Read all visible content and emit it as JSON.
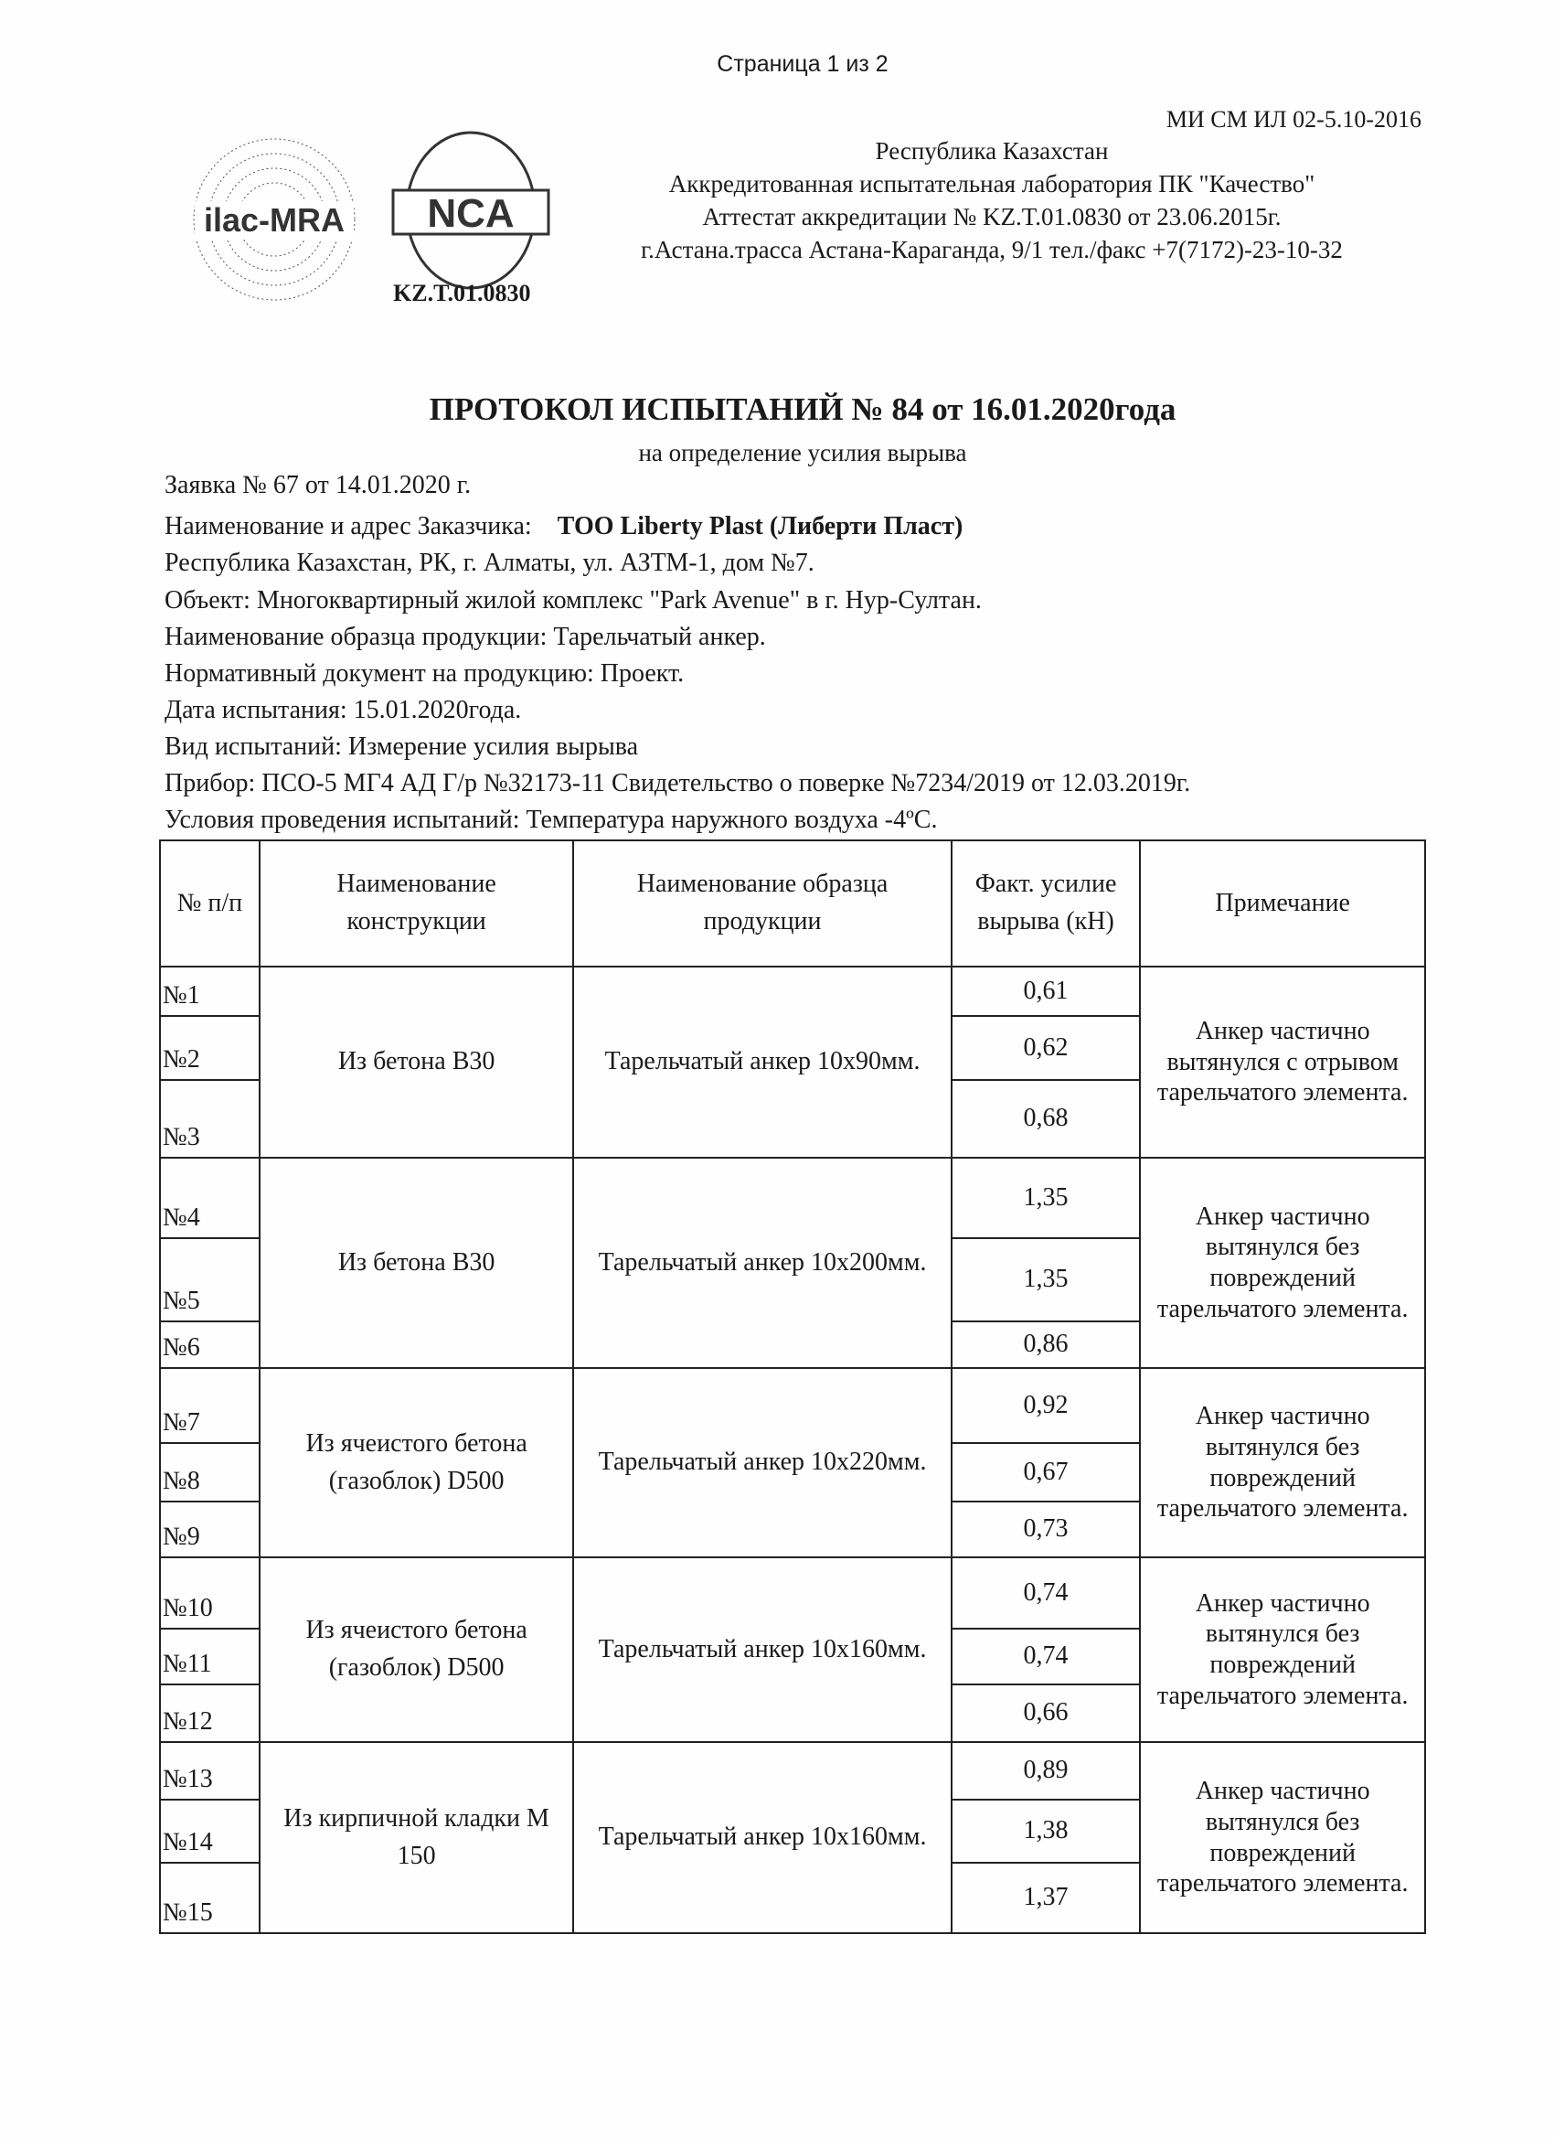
{
  "page_indicator": "Страница  1 из 2",
  "doc_code": "МИ СМ  ИЛ 02-5.10-2016",
  "logos": {
    "ilac": "ilac-MRA",
    "nca": "NCA",
    "nca_code": "KZ.T.01.0830"
  },
  "header": [
    "Республика Казахстан",
    "Аккредитованная испытательная лаборатория    ПК \"Качество\"",
    "Аттестат аккредитации № KZ.T.01.0830 от 23.06.2015г.",
    "г.Астана.трасса Астана-Караганда, 9/1 тел./факс +7(7172)-23-10-32"
  ],
  "title": "ПРОТОКОЛ ИСПЫТАНИЙ № 84 от 16.01.2020года",
  "subtitle": "на определение  усилия вырыва",
  "info": {
    "request": "Заявка № 67 от 14.01.2020 г.",
    "customer_label": "Наименование и адрес Заказчика:",
    "customer_name": "ТОО Liberty Plast (Либерти Пласт)",
    "address": "Республика Казахстан, РК, г. Алматы, ул. АЗТМ-1, дом №7.",
    "object": "Объект: Многоквартирный жилой комплекс  \"Park Avenue\" в г. Нур-Султан.",
    "sample": "Наименование образца  продукции:  Тарельчатый анкер.",
    "normative": "Нормативный документ на продукцию: Проект.",
    "test_date": "Дата испытания:  15.01.2020года.",
    "test_type": "Вид испытаний: Измерение усилия вырыва",
    "device": "Прибор: ПСО-5 МГ4 АД Г/р №32173-11  Свидетельство о поверке №7234/2019 от 12.03.2019г.",
    "conditions": "Условия проведения испытаний: Температура  наружного воздуха -4ºС."
  },
  "table": {
    "headers": [
      "№ п/п",
      "Наименование конструкции",
      "Наименование образца продукции",
      "Факт. усилие вырыва (кН)",
      "Примечание"
    ],
    "groups": [
      {
        "construction": "Из бетона В30",
        "product": "Тарельчатый анкер 10х90мм.",
        "note": "Анкер частично вытянулся с отрывом тарельчатого элемента.",
        "rows": [
          [
            "№1",
            "0,61"
          ],
          [
            "№2",
            "0,62"
          ],
          [
            "№3",
            "0,68"
          ]
        ]
      },
      {
        "construction": "Из бетона В30",
        "product": "Тарельчатый анкер 10х200мм.",
        "note": "Анкер частично вытянулся без повреждений тарельчатого элемента.",
        "rows": [
          [
            "№4",
            "1,35"
          ],
          [
            "№5",
            "1,35"
          ],
          [
            "№6",
            "0,86"
          ]
        ]
      },
      {
        "construction": "Из ячеистого бетона (газоблок) D500",
        "product": "Тарельчатый анкер 10х220мм.",
        "note": "Анкер частично вытянулся без повреждений тарельчатого элемента.",
        "rows": [
          [
            "№7",
            "0,92"
          ],
          [
            "№8",
            "0,67"
          ],
          [
            "№9",
            "0,73"
          ]
        ]
      },
      {
        "construction": "Из ячеистого бетона (газоблок) D500",
        "product": "Тарельчатый анкер 10х160мм.",
        "note": "Анкер частично вытянулся без повреждений тарельчатого элемента.",
        "rows": [
          [
            "№10",
            "0,74"
          ],
          [
            "№11",
            "0,74"
          ],
          [
            "№12",
            "0,66"
          ]
        ]
      },
      {
        "construction": "Из кирпичной кладки М 150",
        "product": "Тарельчатый анкер 10х160мм.",
        "note": "Анкер частично вытянулся без повреждений тарельчатого элемента.",
        "rows": [
          [
            "№13",
            "0,89"
          ],
          [
            "№14",
            "1,38"
          ],
          [
            "№15",
            "1,37"
          ]
        ]
      }
    ]
  }
}
